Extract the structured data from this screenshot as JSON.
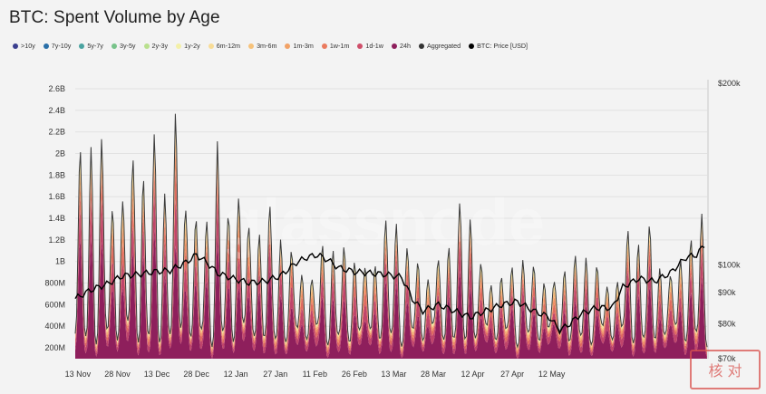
{
  "page": {
    "title": "BTC: Spent Volume by Age"
  },
  "legend": [
    {
      "label": ">10y",
      "color": "#3b3f8f"
    },
    {
      "label": "7y-10y",
      "color": "#2a6fa8"
    },
    {
      "label": "5y-7y",
      "color": "#4aa3a0"
    },
    {
      "label": "3y-5y",
      "color": "#78c38a"
    },
    {
      "label": "2y-3y",
      "color": "#b9e08e"
    },
    {
      "label": "1y-2y",
      "color": "#f3f0a8"
    },
    {
      "label": "6m-12m",
      "color": "#f8dc96"
    },
    {
      "label": "3m-6m",
      "color": "#f6c27a"
    },
    {
      "label": "1m-3m",
      "color": "#f2a266"
    },
    {
      "label": "1w-1m",
      "color": "#ea7a5e"
    },
    {
      "label": "1d-1w",
      "color": "#cf4f6a"
    },
    {
      "label": "24h",
      "color": "#8e1f5c"
    },
    {
      "label": "Aggregated",
      "color": "#333333"
    },
    {
      "label": "BTC: Price [USD]",
      "color": "#000000"
    }
  ],
  "watermark": "glassnode",
  "stamp": {
    "text": "核 对"
  },
  "chart_data": {
    "type": "area",
    "stacked": true,
    "x_ticks": [
      "13 Nov",
      "28 Nov",
      "13 Dec",
      "28 Dec",
      "12 Jan",
      "27 Jan",
      "11 Feb",
      "26 Feb",
      "13 Mar",
      "28 Mar",
      "12 Apr",
      "27 Apr",
      "12 May"
    ],
    "left_axis": {
      "ticks": [
        "200M",
        "400M",
        "600M",
        "800M",
        "1B",
        "1.2B",
        "1.4B",
        "1.6B",
        "1.8B",
        "2B",
        "2.2B",
        "2.4B",
        "2.6B"
      ],
      "values": [
        0.2,
        0.4,
        0.6,
        0.8,
        1.0,
        1.2,
        1.4,
        1.6,
        1.8,
        2.0,
        2.2,
        2.4,
        2.6
      ],
      "range": [
        0.1,
        2.65
      ]
    },
    "right_axis": {
      "ticks": [
        "$70k",
        "$80k",
        "$90k",
        "$100k",
        "$200k"
      ],
      "values": [
        70000,
        80000,
        90000,
        100000,
        200000
      ],
      "scale": "log"
    },
    "series_order": [
      "24h",
      "1d-1w",
      "1w-1m",
      "1m-3m",
      "3m-6m",
      "6m-12m",
      "1y-2y",
      "2y-3y"
    ],
    "peaks_billion": [
      {
        "day": 0,
        "v": 2.08
      },
      {
        "day": 5,
        "v": 1.72
      },
      {
        "day": 9,
        "v": 2.05
      },
      {
        "day": 14,
        "v": 1.55
      },
      {
        "day": 18,
        "v": 1.82
      },
      {
        "day": 23,
        "v": 2.18
      },
      {
        "day": 27,
        "v": 1.45
      },
      {
        "day": 31,
        "v": 2.05
      },
      {
        "day": 35,
        "v": 1.35
      },
      {
        "day": 38,
        "v": 2.58
      },
      {
        "day": 42,
        "v": 1.72
      },
      {
        "day": 46,
        "v": 1.45
      },
      {
        "day": 50,
        "v": 1.25
      },
      {
        "day": 54,
        "v": 1.85
      },
      {
        "day": 58,
        "v": 1.35
      },
      {
        "day": 61,
        "v": 1.82
      },
      {
        "day": 65,
        "v": 1.62
      },
      {
        "day": 69,
        "v": 1.22
      },
      {
        "day": 73,
        "v": 1.45
      },
      {
        "day": 77,
        "v": 1.05
      },
      {
        "day": 81,
        "v": 1.1
      },
      {
        "day": 86,
        "v": 1.0
      },
      {
        "day": 90,
        "v": 0.95
      },
      {
        "day": 95,
        "v": 1.18
      },
      {
        "day": 99,
        "v": 0.9
      },
      {
        "day": 103,
        "v": 1.05
      },
      {
        "day": 107,
        "v": 1.0
      },
      {
        "day": 111,
        "v": 1.12
      },
      {
        "day": 115,
        "v": 1.05
      },
      {
        "day": 119,
        "v": 1.42
      },
      {
        "day": 123,
        "v": 1.1
      },
      {
        "day": 127,
        "v": 1.0
      },
      {
        "day": 131,
        "v": 1.05
      },
      {
        "day": 135,
        "v": 0.95
      },
      {
        "day": 139,
        "v": 1.15
      },
      {
        "day": 143,
        "v": 1.02
      },
      {
        "day": 147,
        "v": 1.45
      },
      {
        "day": 151,
        "v": 1.25
      },
      {
        "day": 155,
        "v": 1.0
      },
      {
        "day": 159,
        "v": 0.88
      },
      {
        "day": 163,
        "v": 0.9
      },
      {
        "day": 167,
        "v": 0.85
      },
      {
        "day": 171,
        "v": 0.9
      },
      {
        "day": 175,
        "v": 0.92
      },
      {
        "day": 179,
        "v": 0.88
      },
      {
        "day": 183,
        "v": 0.96
      },
      {
        "day": 187,
        "v": 0.92
      },
      {
        "day": 191,
        "v": 0.95
      },
      {
        "day": 195,
        "v": 0.9
      },
      {
        "day": 199,
        "v": 0.95
      },
      {
        "day": 203,
        "v": 0.85
      },
      {
        "day": 207,
        "v": 0.95
      },
      {
        "day": 211,
        "v": 1.38
      },
      {
        "day": 215,
        "v": 0.9
      },
      {
        "day": 219,
        "v": 1.28
      },
      {
        "day": 223,
        "v": 0.85
      },
      {
        "day": 227,
        "v": 1.05
      },
      {
        "day": 231,
        "v": 1.15
      },
      {
        "day": 235,
        "v": 1.15
      },
      {
        "day": 239,
        "v": 1.3
      }
    ],
    "price_usd": [
      {
        "day": 0,
        "v": 88000
      },
      {
        "day": 6,
        "v": 91000
      },
      {
        "day": 12,
        "v": 93000
      },
      {
        "day": 18,
        "v": 96000
      },
      {
        "day": 24,
        "v": 96500
      },
      {
        "day": 30,
        "v": 97500
      },
      {
        "day": 36,
        "v": 98000
      },
      {
        "day": 42,
        "v": 101000
      },
      {
        "day": 46,
        "v": 104000
      },
      {
        "day": 50,
        "v": 101000
      },
      {
        "day": 54,
        "v": 97000
      },
      {
        "day": 60,
        "v": 95000
      },
      {
        "day": 66,
        "v": 93500
      },
      {
        "day": 72,
        "v": 94000
      },
      {
        "day": 78,
        "v": 96000
      },
      {
        "day": 84,
        "v": 101000
      },
      {
        "day": 88,
        "v": 103000
      },
      {
        "day": 92,
        "v": 104000
      },
      {
        "day": 96,
        "v": 102000
      },
      {
        "day": 100,
        "v": 99000
      },
      {
        "day": 106,
        "v": 97500
      },
      {
        "day": 112,
        "v": 97000
      },
      {
        "day": 118,
        "v": 96500
      },
      {
        "day": 124,
        "v": 95500
      },
      {
        "day": 128,
        "v": 88000
      },
      {
        "day": 132,
        "v": 84000
      },
      {
        "day": 138,
        "v": 86000
      },
      {
        "day": 144,
        "v": 84000
      },
      {
        "day": 150,
        "v": 82000
      },
      {
        "day": 156,
        "v": 84000
      },
      {
        "day": 162,
        "v": 86000
      },
      {
        "day": 168,
        "v": 87000
      },
      {
        "day": 174,
        "v": 84000
      },
      {
        "day": 180,
        "v": 82000
      },
      {
        "day": 184,
        "v": 78000
      },
      {
        "day": 188,
        "v": 80000
      },
      {
        "day": 192,
        "v": 83000
      },
      {
        "day": 198,
        "v": 85000
      },
      {
        "day": 204,
        "v": 85000
      },
      {
        "day": 208,
        "v": 92000
      },
      {
        "day": 214,
        "v": 95000
      },
      {
        "day": 220,
        "v": 94000
      },
      {
        "day": 226,
        "v": 97000
      },
      {
        "day": 232,
        "v": 103000
      },
      {
        "day": 236,
        "v": 104000
      },
      {
        "day": 239,
        "v": 108000
      }
    ]
  }
}
